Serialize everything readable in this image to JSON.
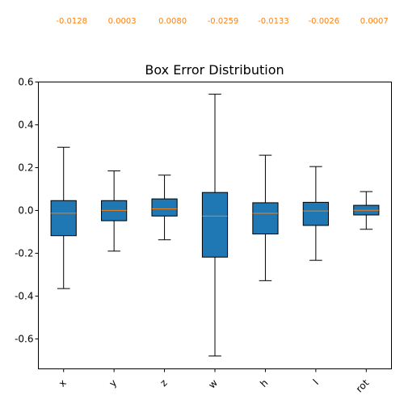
{
  "chart_data": {
    "type": "box",
    "title": "Box Error Distribution",
    "xlabel": "",
    "ylabel": "",
    "ylim": [
      -0.74,
      0.6
    ],
    "yticks": [
      0.6,
      0.4,
      0.2,
      0.0,
      -0.2,
      -0.4,
      -0.6
    ],
    "ytick_labels": [
      "0.6",
      "0.4",
      "0.2",
      "0.0",
      "-0.2",
      "-0.4",
      "-0.6"
    ],
    "grid": false,
    "colors": {
      "box_fill": "#1f77b4",
      "median": "#ff7f0e",
      "edge": "#000000"
    },
    "categories": [
      "x",
      "y",
      "z",
      "w",
      "h",
      "l",
      "rot"
    ],
    "median_labels": [
      "-0.0128",
      "0.0003",
      "0.0080",
      "-0.0259",
      "-0.0133",
      "-0.0026",
      "0.0007"
    ],
    "boxes": [
      {
        "label": "x",
        "whisker_low": -0.365,
        "q1": -0.118,
        "median": -0.0128,
        "q3": 0.046,
        "whisker_high": 0.295
      },
      {
        "label": "y",
        "whisker_low": -0.19,
        "q1": -0.048,
        "median": 0.0003,
        "q3": 0.046,
        "whisker_high": 0.185
      },
      {
        "label": "z",
        "whisker_low": -0.137,
        "q1": -0.026,
        "median": 0.008,
        "q3": 0.054,
        "whisker_high": 0.165
      },
      {
        "label": "w",
        "whisker_low": -0.68,
        "q1": -0.218,
        "median": -0.0259,
        "q3": 0.084,
        "whisker_high": 0.543
      },
      {
        "label": "h",
        "whisker_low": -0.328,
        "q1": -0.11,
        "median": -0.0133,
        "q3": 0.036,
        "whisker_high": 0.258
      },
      {
        "label": "l",
        "whisker_low": -0.233,
        "q1": -0.07,
        "median": -0.0026,
        "q3": 0.038,
        "whisker_high": 0.205
      },
      {
        "label": "rot",
        "whisker_low": -0.088,
        "q1": -0.021,
        "median": 0.0007,
        "q3": 0.024,
        "whisker_high": 0.088
      }
    ]
  }
}
